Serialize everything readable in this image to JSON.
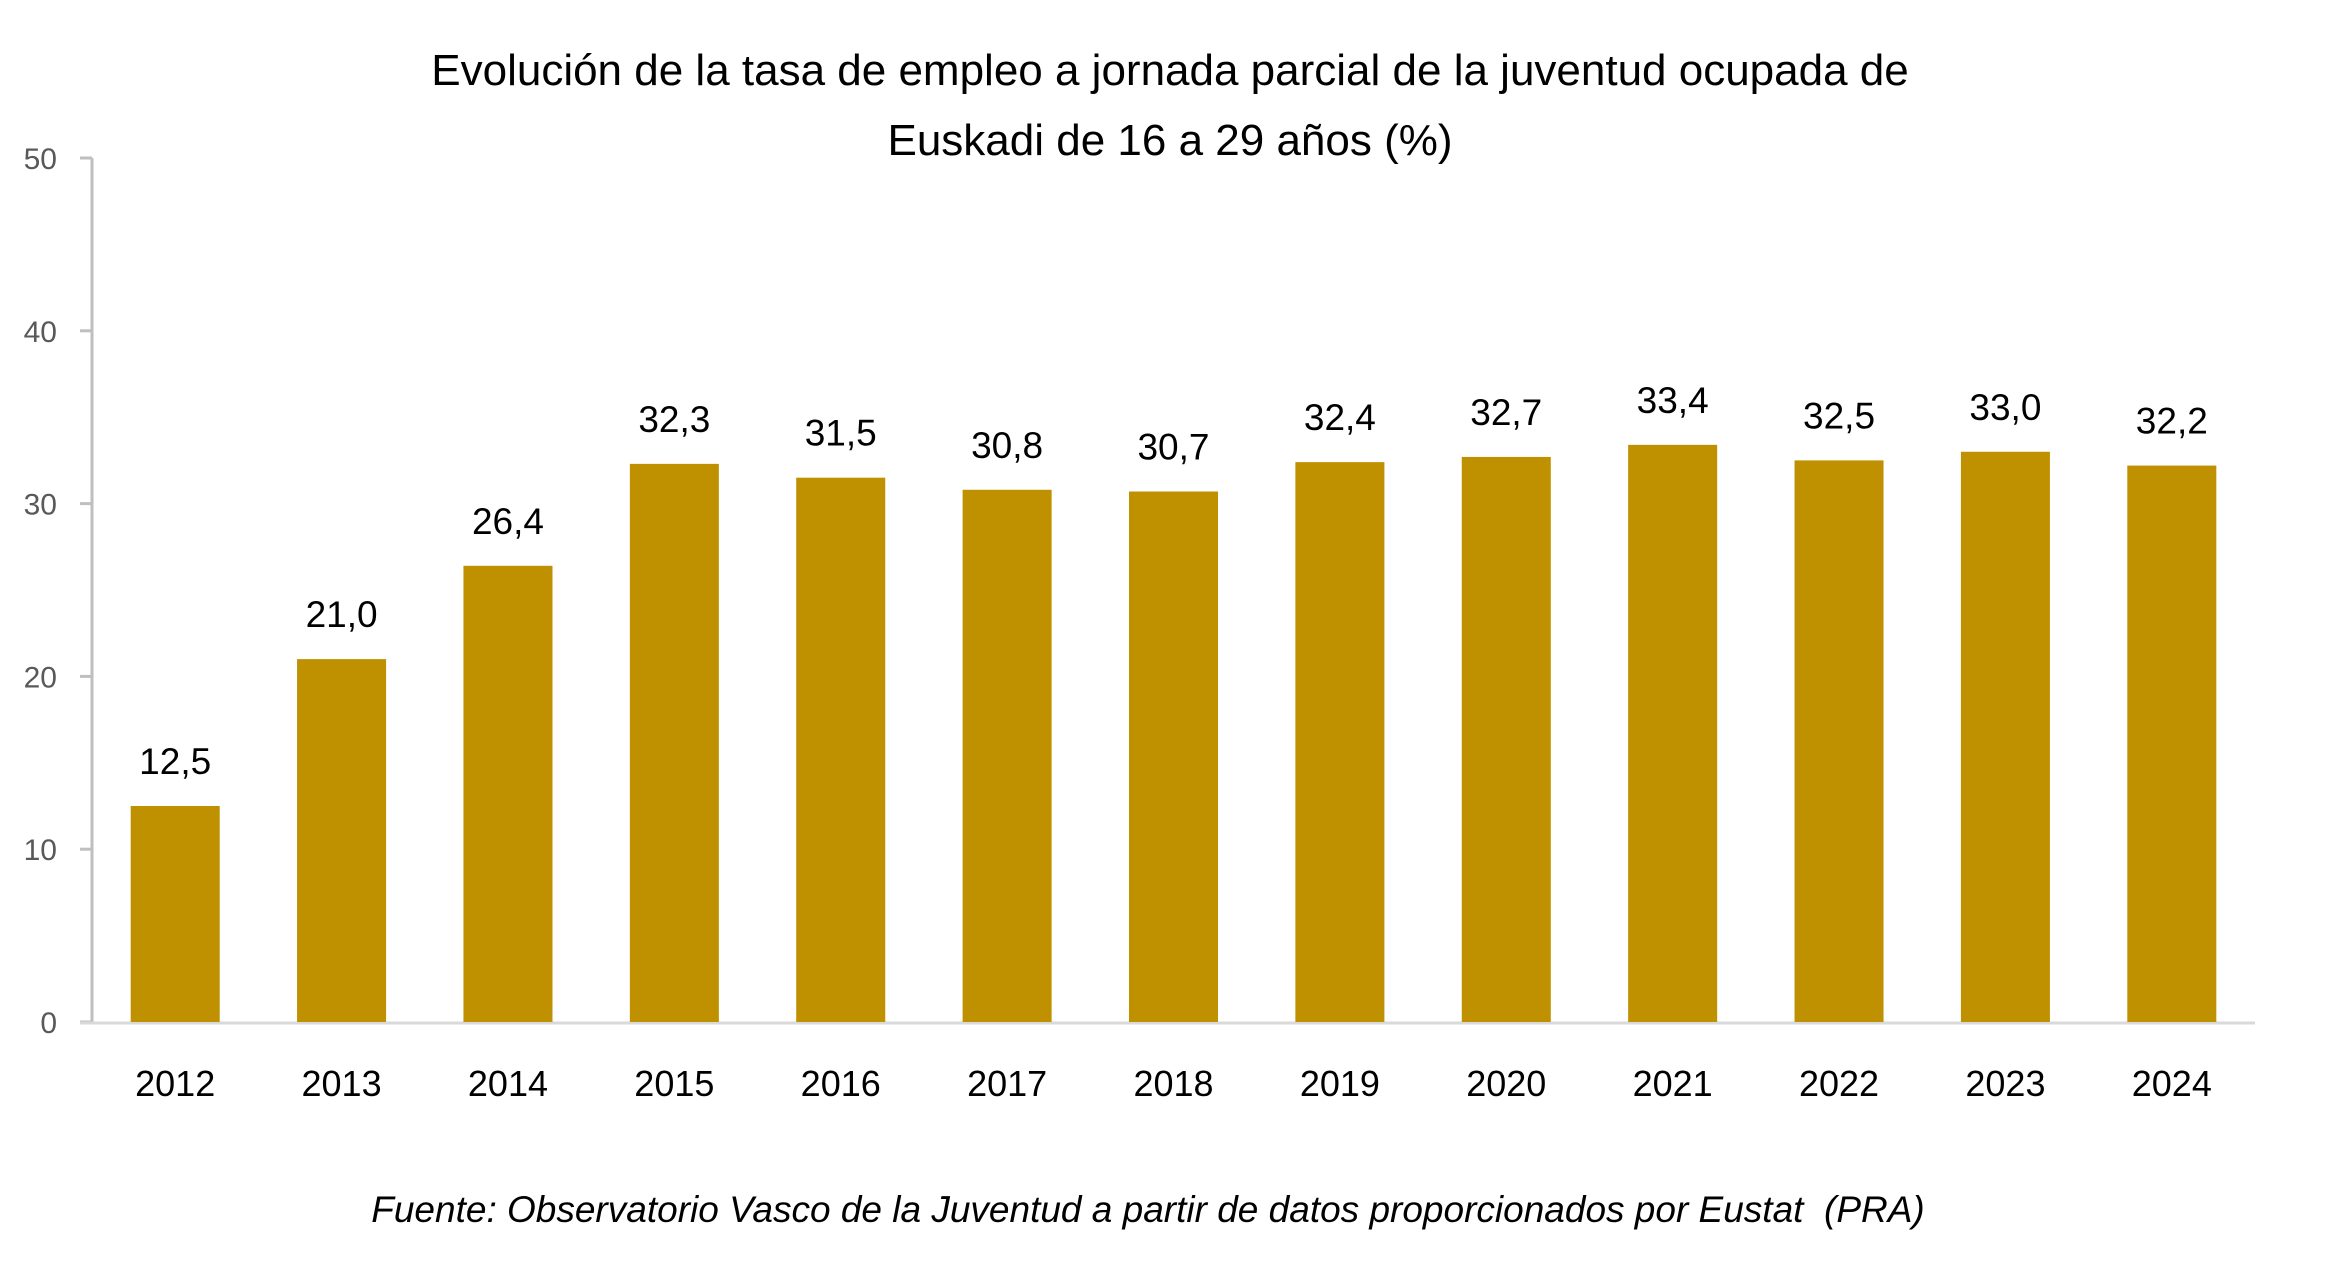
{
  "chart_data": {
    "type": "bar",
    "title": "Evolución de la tasa de empleo a jornada parcial de la juventud ocupada de Euskadi de 16 a 29 años (%)",
    "title_lines": [
      "Evolución de la tasa de empleo a jornada parcial de la juventud ocupada de",
      "Euskadi de 16 a 29 años (%)"
    ],
    "categories": [
      "2012",
      "2013",
      "2014",
      "2015",
      "2016",
      "2017",
      "2018",
      "2019",
      "2020",
      "2021",
      "2022",
      "2023",
      "2024"
    ],
    "values": [
      12.5,
      21.0,
      26.4,
      32.3,
      31.5,
      30.8,
      30.7,
      32.4,
      32.7,
      33.4,
      32.5,
      33.0,
      32.2
    ],
    "data_labels": [
      "12,5",
      "21,0",
      "26,4",
      "32,3",
      "31,5",
      "30,8",
      "30,7",
      "32,4",
      "32,7",
      "33,4",
      "32,5",
      "33,0",
      "32,2"
    ],
    "xlabel": "",
    "ylabel": "",
    "ylim": [
      0,
      50
    ],
    "yticks": [
      0,
      10,
      20,
      30,
      40,
      50
    ],
    "ytick_labels": [
      "0",
      "10",
      "20",
      "30",
      "40",
      "50"
    ],
    "grid": false,
    "legend": "none",
    "bar_color": "#BF9000",
    "source": "Fuente: Observatorio Vasco de la Juventud a partir de datos proporcionados por Eustat  (PRA)"
  },
  "colors": {
    "bar": "#BF9000",
    "y_axis": "#BFBFBF",
    "x_axis": "#D9D9D9",
    "ytick_text": "#595959",
    "text": "#000000"
  }
}
